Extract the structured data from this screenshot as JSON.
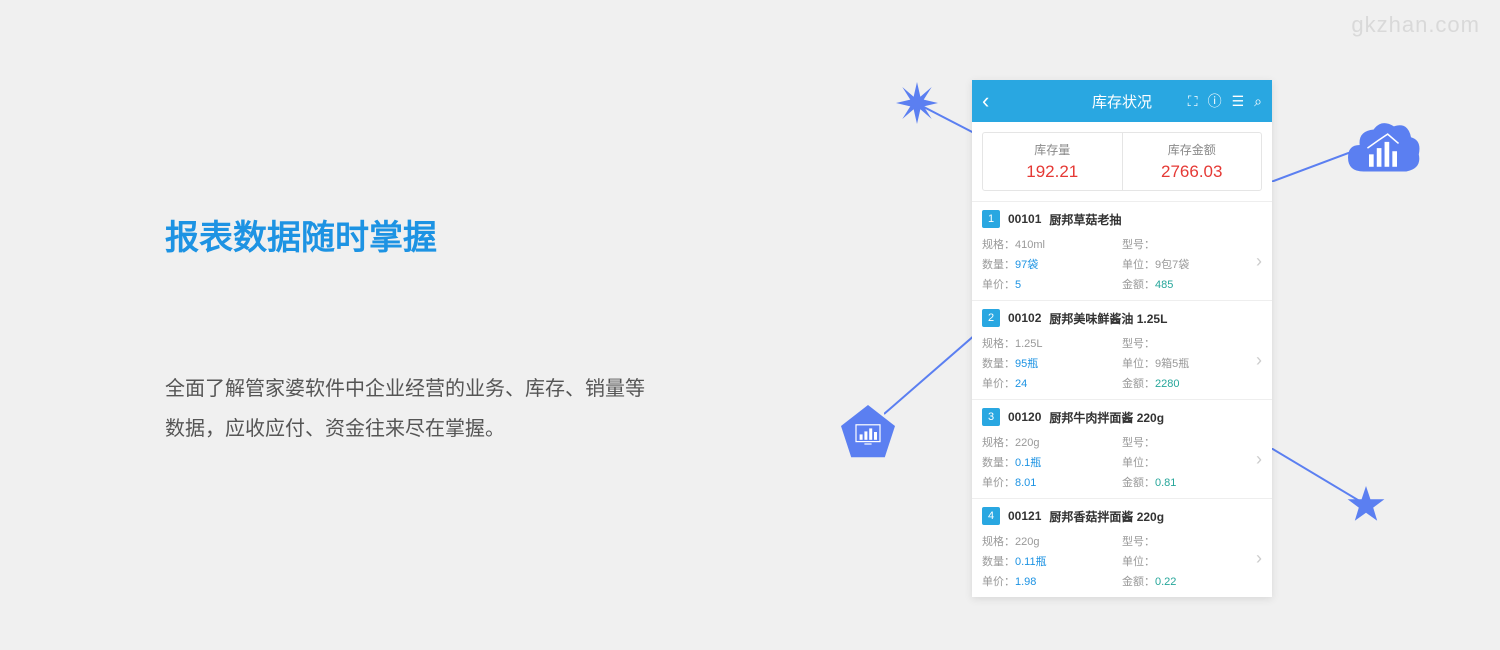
{
  "watermark": "gkzhan.com",
  "heading": "报表数据随时掌握",
  "description": "全面了解管家婆软件中企业经营的业务、库存、销量等数据，应收应付、资金往来尽在掌握。",
  "phone": {
    "title": "库存状况",
    "summary": [
      {
        "label": "库存量",
        "value": "192.21"
      },
      {
        "label": "库存金额",
        "value": "2766.03"
      }
    ],
    "labels": {
      "spec": "规格：",
      "model": "型号：",
      "qty": "数量：",
      "unit": "单位：",
      "price": "单价：",
      "amount": "金额："
    },
    "items": [
      {
        "num": "1",
        "code": "00101",
        "name": "厨邦草菇老抽",
        "spec": "410ml",
        "model": "",
        "qty": "97袋",
        "unit": "9包7袋",
        "price": "5",
        "amount": "485"
      },
      {
        "num": "2",
        "code": "00102",
        "name": "厨邦美味鲜酱油 1.25L",
        "spec": "1.25L",
        "model": "",
        "qty": "95瓶",
        "unit": "9箱5瓶",
        "price": "24",
        "amount": "2280"
      },
      {
        "num": "3",
        "code": "00120",
        "name": "厨邦牛肉拌面酱 220g",
        "spec": "220g",
        "model": "",
        "qty": "0.1瓶",
        "unit": "",
        "price": "8.01",
        "amount": "0.81"
      },
      {
        "num": "4",
        "code": "00121",
        "name": "厨邦香菇拌面酱 220g",
        "spec": "220g",
        "model": "",
        "qty": "0.11瓶",
        "unit": "",
        "price": "1.98",
        "amount": "0.22"
      }
    ]
  },
  "colors": {
    "accent": "#29a7e1",
    "heading": "#1d93e3",
    "decoration": "#5b7ff1",
    "value_red": "#e53935",
    "value_blue": "#1d93e3",
    "value_teal": "#26a69a",
    "background": "#f0f0f0"
  }
}
